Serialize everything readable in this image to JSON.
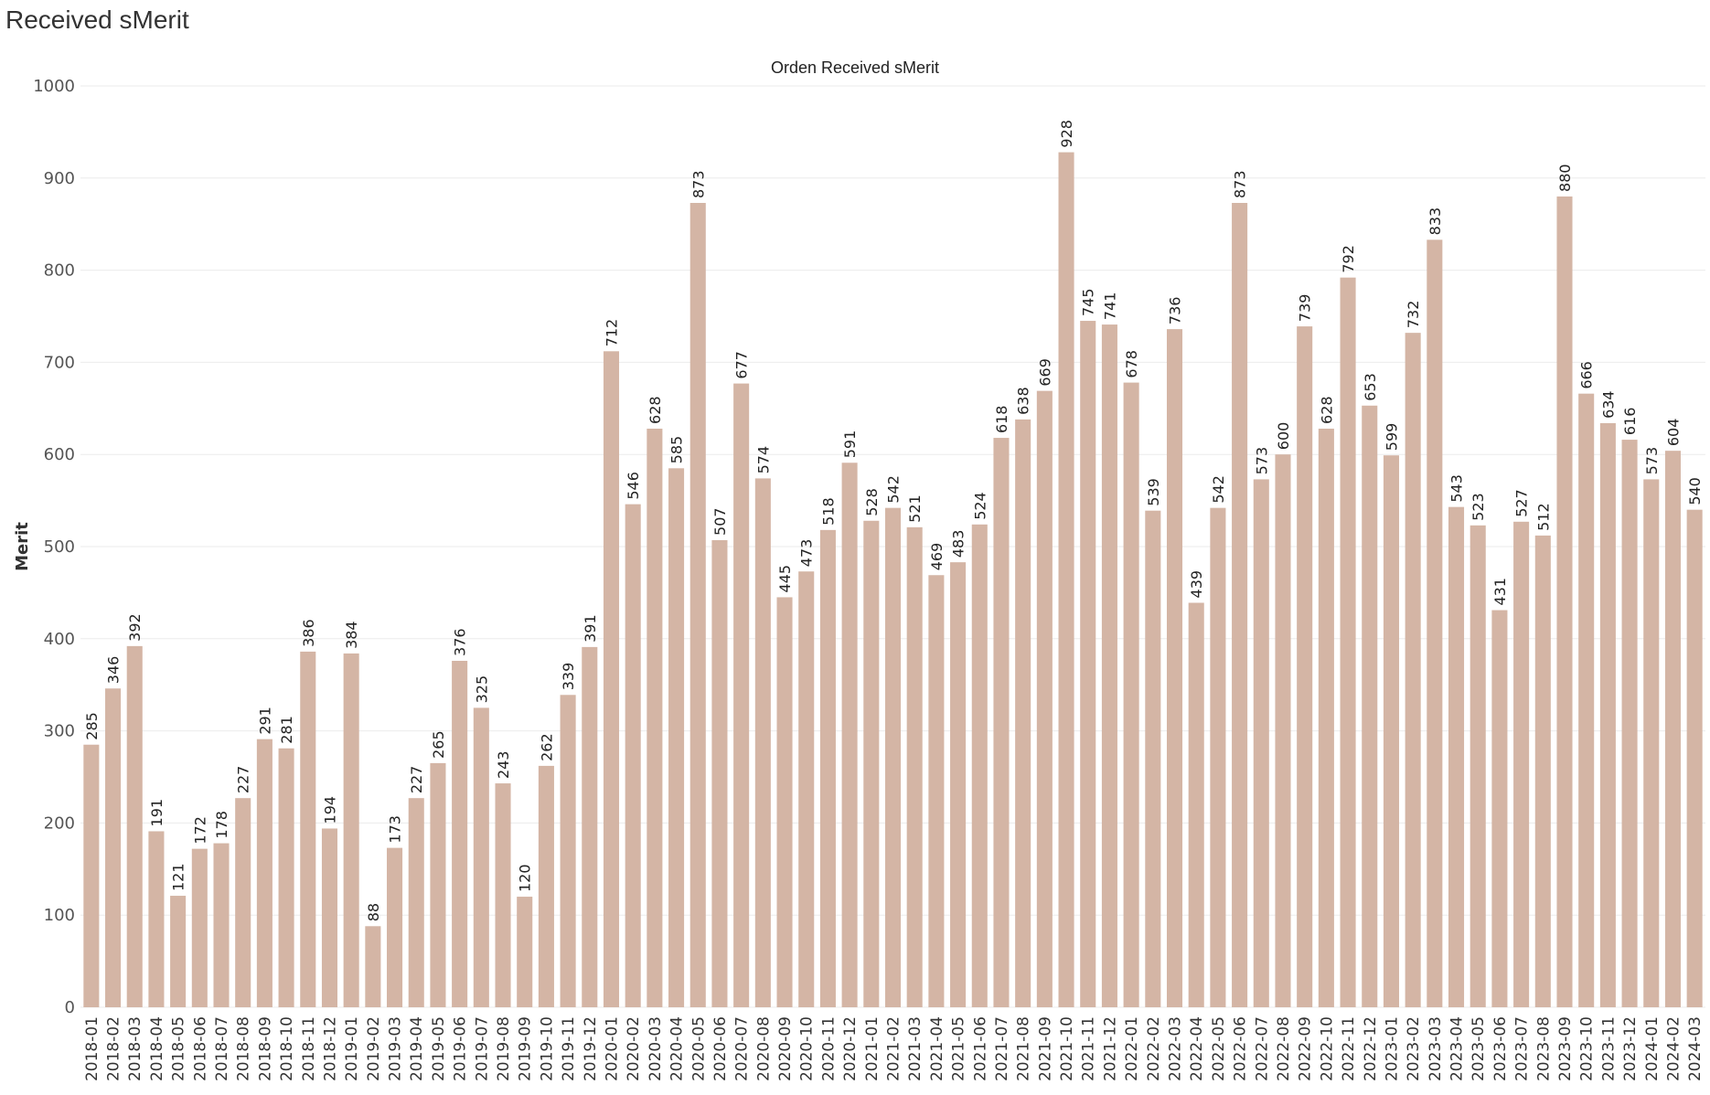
{
  "page_title": "Received sMerit",
  "chart_data": {
    "type": "bar",
    "title": "Orden Received sMerit",
    "xlabel": "",
    "ylabel": "Merit",
    "ylim": [
      0,
      1000
    ],
    "yticks": [
      0,
      100,
      200,
      300,
      400,
      500,
      600,
      700,
      800,
      900,
      1000
    ],
    "grid": true,
    "bar_color": "#d4b5a5",
    "categories": [
      "2018-01",
      "2018-02",
      "2018-03",
      "2018-04",
      "2018-05",
      "2018-06",
      "2018-07",
      "2018-08",
      "2018-09",
      "2018-10",
      "2018-11",
      "2018-12",
      "2019-01",
      "2019-02",
      "2019-03",
      "2019-04",
      "2019-05",
      "2019-06",
      "2019-07",
      "2019-08",
      "2019-09",
      "2019-10",
      "2019-11",
      "2019-12",
      "2020-01",
      "2020-02",
      "2020-03",
      "2020-04",
      "2020-05",
      "2020-06",
      "2020-07",
      "2020-08",
      "2020-09",
      "2020-10",
      "2020-11",
      "2020-12",
      "2021-01",
      "2021-02",
      "2021-03",
      "2021-04",
      "2021-05",
      "2021-06",
      "2021-07",
      "2021-08",
      "2021-09",
      "2021-10",
      "2021-11",
      "2021-12",
      "2022-01",
      "2022-02",
      "2022-03",
      "2022-04",
      "2022-05",
      "2022-06",
      "2022-07",
      "2022-08",
      "2022-09",
      "2022-10",
      "2022-11",
      "2022-12",
      "2023-01",
      "2023-02",
      "2023-03",
      "2023-04",
      "2023-05",
      "2023-06",
      "2023-07",
      "2023-08",
      "2023-09",
      "2023-10",
      "2023-11",
      "2023-12",
      "2024-01",
      "2024-02",
      "2024-03"
    ],
    "values": [
      285,
      346,
      392,
      191,
      121,
      172,
      178,
      227,
      291,
      281,
      386,
      194,
      384,
      88,
      173,
      227,
      265,
      376,
      325,
      243,
      120,
      262,
      339,
      391,
      712,
      546,
      628,
      585,
      873,
      507,
      677,
      574,
      445,
      473,
      518,
      591,
      528,
      542,
      521,
      469,
      483,
      524,
      618,
      638,
      669,
      928,
      745,
      741,
      678,
      539,
      736,
      439,
      542,
      873,
      573,
      600,
      739,
      628,
      792,
      653,
      599,
      732,
      833,
      543,
      523,
      431,
      527,
      512,
      880,
      666,
      634,
      616,
      573,
      604,
      540
    ]
  }
}
